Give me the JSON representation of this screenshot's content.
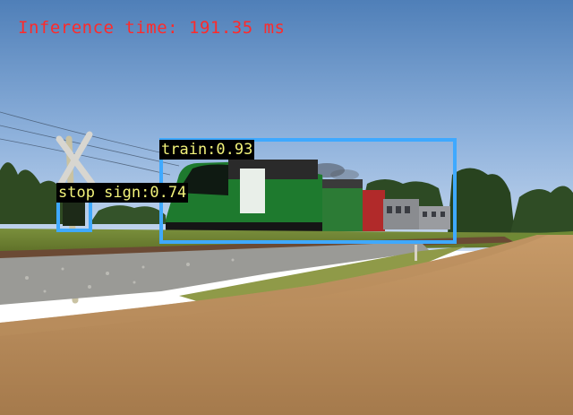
{
  "overlay": {
    "inference_text": "Inference time: 191.35 ms"
  },
  "detections": [
    {
      "label": "train:0.93",
      "class": "train",
      "score": 0.93
    },
    {
      "label": "stop sign:0.74",
      "class": "stop sign",
      "score": 0.74
    }
  ],
  "colors": {
    "inference_text": "#ff2a2a",
    "box": "#3fa9ff",
    "label_bg": "#000000",
    "label_text": "#f2f27a"
  }
}
